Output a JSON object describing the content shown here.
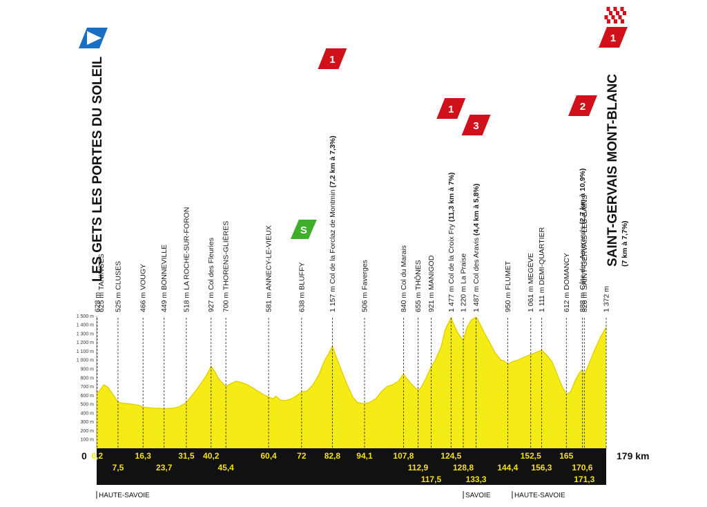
{
  "colors": {
    "profile_fill": "#f5ec17",
    "profile_edge": "#e3cf00",
    "band": "#111111",
    "band_text": "#f5e400",
    "climb_badge": "#d0111b",
    "start_badge": "#1a6fc2",
    "sprint_badge": "#3fae2a"
  },
  "start_town": "LES GETS LES PORTES DU SOLEIL",
  "finish_town": "SAINT-GERVAIS MONT-BLANC",
  "finish_sub": "(7 km à 7,7%)",
  "start_km_label": "0",
  "total_km_label": "179 km",
  "departments": [
    {
      "km": 0,
      "label": "HAUTE-SAVOIE"
    },
    {
      "km": 128.8,
      "label": "SAVOIE"
    },
    {
      "km": 146,
      "label": "HAUTE-SAVOIE"
    }
  ],
  "badges": {
    "start_icon": "start-flag-icon",
    "sprint_icon": "sprint-icon",
    "sprint_letter": "S",
    "finish_icon": "checkered-flag-icon"
  },
  "climbs": [
    {
      "km": 82.8,
      "category": "1"
    },
    {
      "km": 124.5,
      "category": "1"
    },
    {
      "km": 133.3,
      "category": "3"
    },
    {
      "km": 170.6,
      "category": "2"
    },
    {
      "km": 179,
      "category": "1"
    }
  ],
  "chart_data": {
    "type": "area",
    "title": "",
    "xlabel": "",
    "ylabel": "",
    "xlim": [
      0,
      179
    ],
    "ylim": [
      0,
      1500
    ],
    "y_ticks": [
      "100 m",
      "200 m",
      "300 m",
      "400 m",
      "500 m",
      "600 m",
      "700 m",
      "800 m",
      "900 m",
      "1 000 m",
      "1 100 m",
      "1 200 m",
      "1 300 m",
      "1 400 m",
      "1 500 m"
    ],
    "y_tick_values": [
      100,
      200,
      300,
      400,
      500,
      600,
      700,
      800,
      900,
      1000,
      1100,
      1200,
      1300,
      1400,
      1500
    ],
    "profile": [
      [
        0,
        628
      ],
      [
        0.2,
        625
      ],
      [
        1,
        650
      ],
      [
        2.5,
        720
      ],
      [
        4,
        690
      ],
      [
        5.5,
        620
      ],
      [
        7.5,
        525
      ],
      [
        9,
        510
      ],
      [
        11,
        505
      ],
      [
        13,
        498
      ],
      [
        15,
        485
      ],
      [
        16.3,
        466
      ],
      [
        18,
        460
      ],
      [
        20,
        455
      ],
      [
        22,
        452
      ],
      [
        23.7,
        449
      ],
      [
        25,
        450
      ],
      [
        27,
        455
      ],
      [
        29,
        470
      ],
      [
        31.5,
        518
      ],
      [
        33,
        580
      ],
      [
        35,
        660
      ],
      [
        37,
        750
      ],
      [
        38.5,
        820
      ],
      [
        40.2,
        927
      ],
      [
        41.5,
        870
      ],
      [
        43,
        780
      ],
      [
        45.4,
        700
      ],
      [
        47,
        730
      ],
      [
        49,
        760
      ],
      [
        51,
        745
      ],
      [
        53,
        720
      ],
      [
        55,
        680
      ],
      [
        57,
        640
      ],
      [
        59,
        600
      ],
      [
        60.4,
        581
      ],
      [
        62,
        560
      ],
      [
        63,
        590
      ],
      [
        64.5,
        545
      ],
      [
        66,
        540
      ],
      [
        68,
        555
      ],
      [
        70,
        590
      ],
      [
        72,
        638
      ],
      [
        74,
        650
      ],
      [
        76,
        720
      ],
      [
        78,
        830
      ],
      [
        80,
        990
      ],
      [
        81.5,
        1070
      ],
      [
        82.8,
        1157
      ],
      [
        84,
        1050
      ],
      [
        86,
        880
      ],
      [
        88,
        720
      ],
      [
        90,
        580
      ],
      [
        91.5,
        520
      ],
      [
        93,
        510
      ],
      [
        94.1,
        506
      ],
      [
        96,
        520
      ],
      [
        98,
        560
      ],
      [
        100,
        640
      ],
      [
        102,
        700
      ],
      [
        104,
        720
      ],
      [
        106,
        760
      ],
      [
        107.8,
        840
      ],
      [
        109,
        790
      ],
      [
        110.5,
        730
      ],
      [
        112.9,
        655
      ],
      [
        114,
        690
      ],
      [
        115.5,
        780
      ],
      [
        117.5,
        921
      ],
      [
        119,
        1000
      ],
      [
        121,
        1150
      ],
      [
        122.5,
        1350
      ],
      [
        124.5,
        1477
      ],
      [
        125.5,
        1400
      ],
      [
        127,
        1300
      ],
      [
        128.8,
        1220
      ],
      [
        130,
        1360
      ],
      [
        131.5,
        1450
      ],
      [
        133.3,
        1487
      ],
      [
        134.5,
        1420
      ],
      [
        136,
        1320
      ],
      [
        138,
        1200
      ],
      [
        140,
        1080
      ],
      [
        142,
        1000
      ],
      [
        143.2,
        990
      ],
      [
        144.4,
        950
      ],
      [
        146,
        980
      ],
      [
        148,
        1000
      ],
      [
        150,
        1030
      ],
      [
        152.5,
        1061
      ],
      [
        154,
        1080
      ],
      [
        156.3,
        1111
      ],
      [
        158,
        1060
      ],
      [
        160,
        980
      ],
      [
        162,
        820
      ],
      [
        163.5,
        700
      ],
      [
        165,
        612
      ],
      [
        166.5,
        640
      ],
      [
        168,
        760
      ],
      [
        169.5,
        850
      ],
      [
        170.6,
        888
      ],
      [
        171.3,
        826
      ],
      [
        173,
        960
      ],
      [
        175,
        1120
      ],
      [
        177,
        1260
      ],
      [
        179,
        1372
      ]
    ],
    "points": [
      {
        "km_label": "0,2",
        "km": 0.2,
        "row": 0,
        "name": "LES GETS LES PORTES DU SOLEIL",
        "alt": "628 m",
        "bold": false
      },
      {
        "km_label": "7,5",
        "km": 7.5,
        "row": 1,
        "name": "CLUSES",
        "alt": "525 m",
        "bold": false
      },
      {
        "km_label": "16,3",
        "km": 16.3,
        "row": 0,
        "name": "VOUGY",
        "alt": "466 m",
        "bold": false
      },
      {
        "km_label": "23,7",
        "km": 23.7,
        "row": 1,
        "name": "BONNEVILLE",
        "alt": "449 m",
        "bold": false
      },
      {
        "km_label": "31,5",
        "km": 31.5,
        "row": 0,
        "name": "LA ROCHE-SUR-FORON",
        "alt": "518 m",
        "bold": false
      },
      {
        "km_label": "40,2",
        "km": 40.2,
        "row": 0,
        "name": "Col des Fleuries",
        "alt": "927 m",
        "bold": false
      },
      {
        "km_label": "45,4",
        "km": 45.4,
        "row": 1,
        "name": "THORENS-GLIÈRES",
        "alt": "700 m",
        "bold": false
      },
      {
        "km_label": "60,4",
        "km": 60.4,
        "row": 0,
        "name": "ANNECY-LE-VIEUX",
        "alt": "581 m",
        "bold": false
      },
      {
        "km_label": "72",
        "km": 72,
        "row": 0,
        "name": "BLUFFY",
        "alt": "638 m",
        "bold": false
      },
      {
        "km_label": "82,8",
        "km": 82.8,
        "row": 0,
        "name": "Col de la Forclaz de Montmin",
        "alt": "1 157 m",
        "bold": false,
        "climb_info": "(7,2 km à 7,3%)"
      },
      {
        "km_label": "94,1",
        "km": 94.1,
        "row": 0,
        "name": "Faverges",
        "alt": "506 m",
        "bold": false
      },
      {
        "km_label": "107,8",
        "km": 107.8,
        "row": 0,
        "name": "Col du Marais",
        "alt": "840 m",
        "bold": false
      },
      {
        "km_label": "112,9",
        "km": 112.9,
        "row": 1,
        "name": "THÔNES",
        "alt": "655 m",
        "bold": false
      },
      {
        "km_label": "117,5",
        "km": 117.5,
        "row": 2,
        "name": "MANIGOD",
        "alt": "921 m",
        "bold": false
      },
      {
        "km_label": "124,5",
        "km": 124.5,
        "row": 0,
        "name": "Col de la Croix Fry",
        "alt": "1 477 m",
        "bold": false,
        "climb_info": "(11,3 km à 7%)"
      },
      {
        "km_label": "128,8",
        "km": 128.8,
        "row": 1,
        "name": "La Praise",
        "alt": "1 220 m",
        "bold": false
      },
      {
        "km_label": "133,3",
        "km": 133.3,
        "row": 2,
        "name": "Col des Aravis",
        "alt": "1 487 m",
        "bold": false,
        "climb_info": "(4,4 km à 5,8%)"
      },
      {
        "km_label": "144,4",
        "km": 144.4,
        "row": 1,
        "name": "FLUMET",
        "alt": "950 m",
        "bold": false
      },
      {
        "km_label": "152,5",
        "km": 152.5,
        "row": 0,
        "name": "MEGÈVE",
        "alt": "1 061 m",
        "bold": false
      },
      {
        "km_label": "156,3",
        "km": 156.3,
        "row": 1,
        "name": "DEMI-QUARTIER",
        "alt": "1 111 m",
        "bold": false
      },
      {
        "km_label": "165",
        "km": 165,
        "row": 0,
        "name": "DOMANCY",
        "alt": "612 m",
        "bold": false
      },
      {
        "km_label": "170,6",
        "km": 170.6,
        "row": 1,
        "name": "Côte des Amerands",
        "alt": "888 m",
        "bold": false,
        "climb_info": "(2,7 km à 10,9%)"
      },
      {
        "km_label": "171,3",
        "km": 171.3,
        "row": 2,
        "name": "SAINT-GERVAIS-LES-BAINS",
        "alt": "826 m",
        "bold": false
      },
      {
        "km_label": "",
        "km": 179,
        "row": 0,
        "name": "",
        "alt": "1 372 m",
        "bold": false
      }
    ],
    "extra_labels": [
      {
        "km": 1.6,
        "alt": "625 m",
        "name": "TANINGES"
      }
    ]
  }
}
